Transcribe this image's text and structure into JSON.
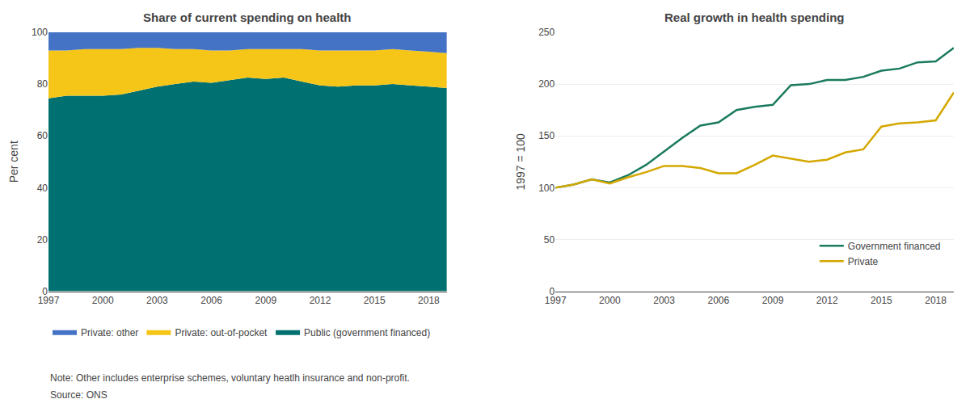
{
  "chart_data": [
    {
      "type": "area",
      "title": "Share of current spending on health",
      "ylabel": "Per cent",
      "x": [
        1997,
        1998,
        1999,
        2000,
        2001,
        2002,
        2003,
        2004,
        2005,
        2006,
        2007,
        2008,
        2009,
        2010,
        2011,
        2012,
        2013,
        2014,
        2015,
        2016,
        2017,
        2018,
        2019
      ],
      "series": [
        {
          "name": "Public (government financed)",
          "color": "#007070",
          "values": [
            74.5,
            75.5,
            75.5,
            75.5,
            76.0,
            77.5,
            79.0,
            80.0,
            81.0,
            80.5,
            81.5,
            82.5,
            82.0,
            82.5,
            81.0,
            79.5,
            79.0,
            79.5,
            79.5,
            80.0,
            79.5,
            79.0,
            78.5
          ]
        },
        {
          "name": "Private: out-of-pocket",
          "color": "#F5C518",
          "values": [
            18.5,
            17.5,
            18.0,
            18.0,
            17.5,
            16.5,
            15.0,
            13.5,
            12.5,
            12.5,
            11.5,
            11.0,
            11.5,
            11.0,
            12.5,
            13.5,
            14.0,
            13.5,
            13.5,
            13.5,
            13.5,
            13.5,
            13.5
          ]
        },
        {
          "name": "Private: other",
          "color": "#4472C4",
          "values": [
            7.0,
            7.0,
            6.5,
            6.5,
            6.5,
            6.0,
            6.0,
            6.5,
            6.5,
            7.0,
            7.0,
            6.5,
            6.5,
            6.5,
            6.5,
            7.0,
            7.0,
            7.0,
            7.0,
            6.5,
            7.0,
            7.5,
            8.0
          ]
        }
      ],
      "stacked": true,
      "xlim": [
        1997,
        2019
      ],
      "ylim": [
        0,
        100
      ],
      "xticks": [
        1997,
        2000,
        2003,
        2006,
        2009,
        2012,
        2015,
        2018
      ],
      "yticks": [
        0,
        20,
        40,
        60,
        80,
        100
      ],
      "grid": true,
      "legend": "bottom",
      "annotations": [
        "Note: Other includes enterprise schemes, voluntary heatlh insurance and non-profit.",
        "Source: ONS"
      ]
    },
    {
      "type": "line",
      "title": "Real growth in health spending",
      "ylabel": "1997 = 100",
      "x": [
        1997,
        1998,
        1999,
        2000,
        2001,
        2002,
        2003,
        2004,
        2005,
        2006,
        2007,
        2008,
        2009,
        2010,
        2011,
        2012,
        2013,
        2014,
        2015,
        2016,
        2017,
        2018,
        2019
      ],
      "series": [
        {
          "name": "Government financed",
          "color": "#1a7a5e",
          "values": [
            100,
            103,
            108,
            105,
            112,
            122,
            135,
            148,
            160,
            163,
            175,
            178,
            180,
            199,
            200,
            204,
            204,
            207,
            213,
            215,
            221,
            222,
            235
          ]
        },
        {
          "name": "Private",
          "color": "#D4A800",
          "values": [
            100,
            103,
            108,
            104,
            110,
            115,
            121,
            121,
            119,
            114,
            114,
            122,
            131,
            128,
            125,
            127,
            134,
            137,
            159,
            162,
            163,
            165,
            192
          ]
        }
      ],
      "xlim": [
        1997,
        2019
      ],
      "ylim": [
        0,
        250
      ],
      "xticks": [
        1997,
        2000,
        2003,
        2006,
        2009,
        2012,
        2015,
        2018
      ],
      "yticks": [
        0,
        50,
        100,
        150,
        200,
        250
      ],
      "grid": true,
      "legend": "lower right"
    }
  ]
}
